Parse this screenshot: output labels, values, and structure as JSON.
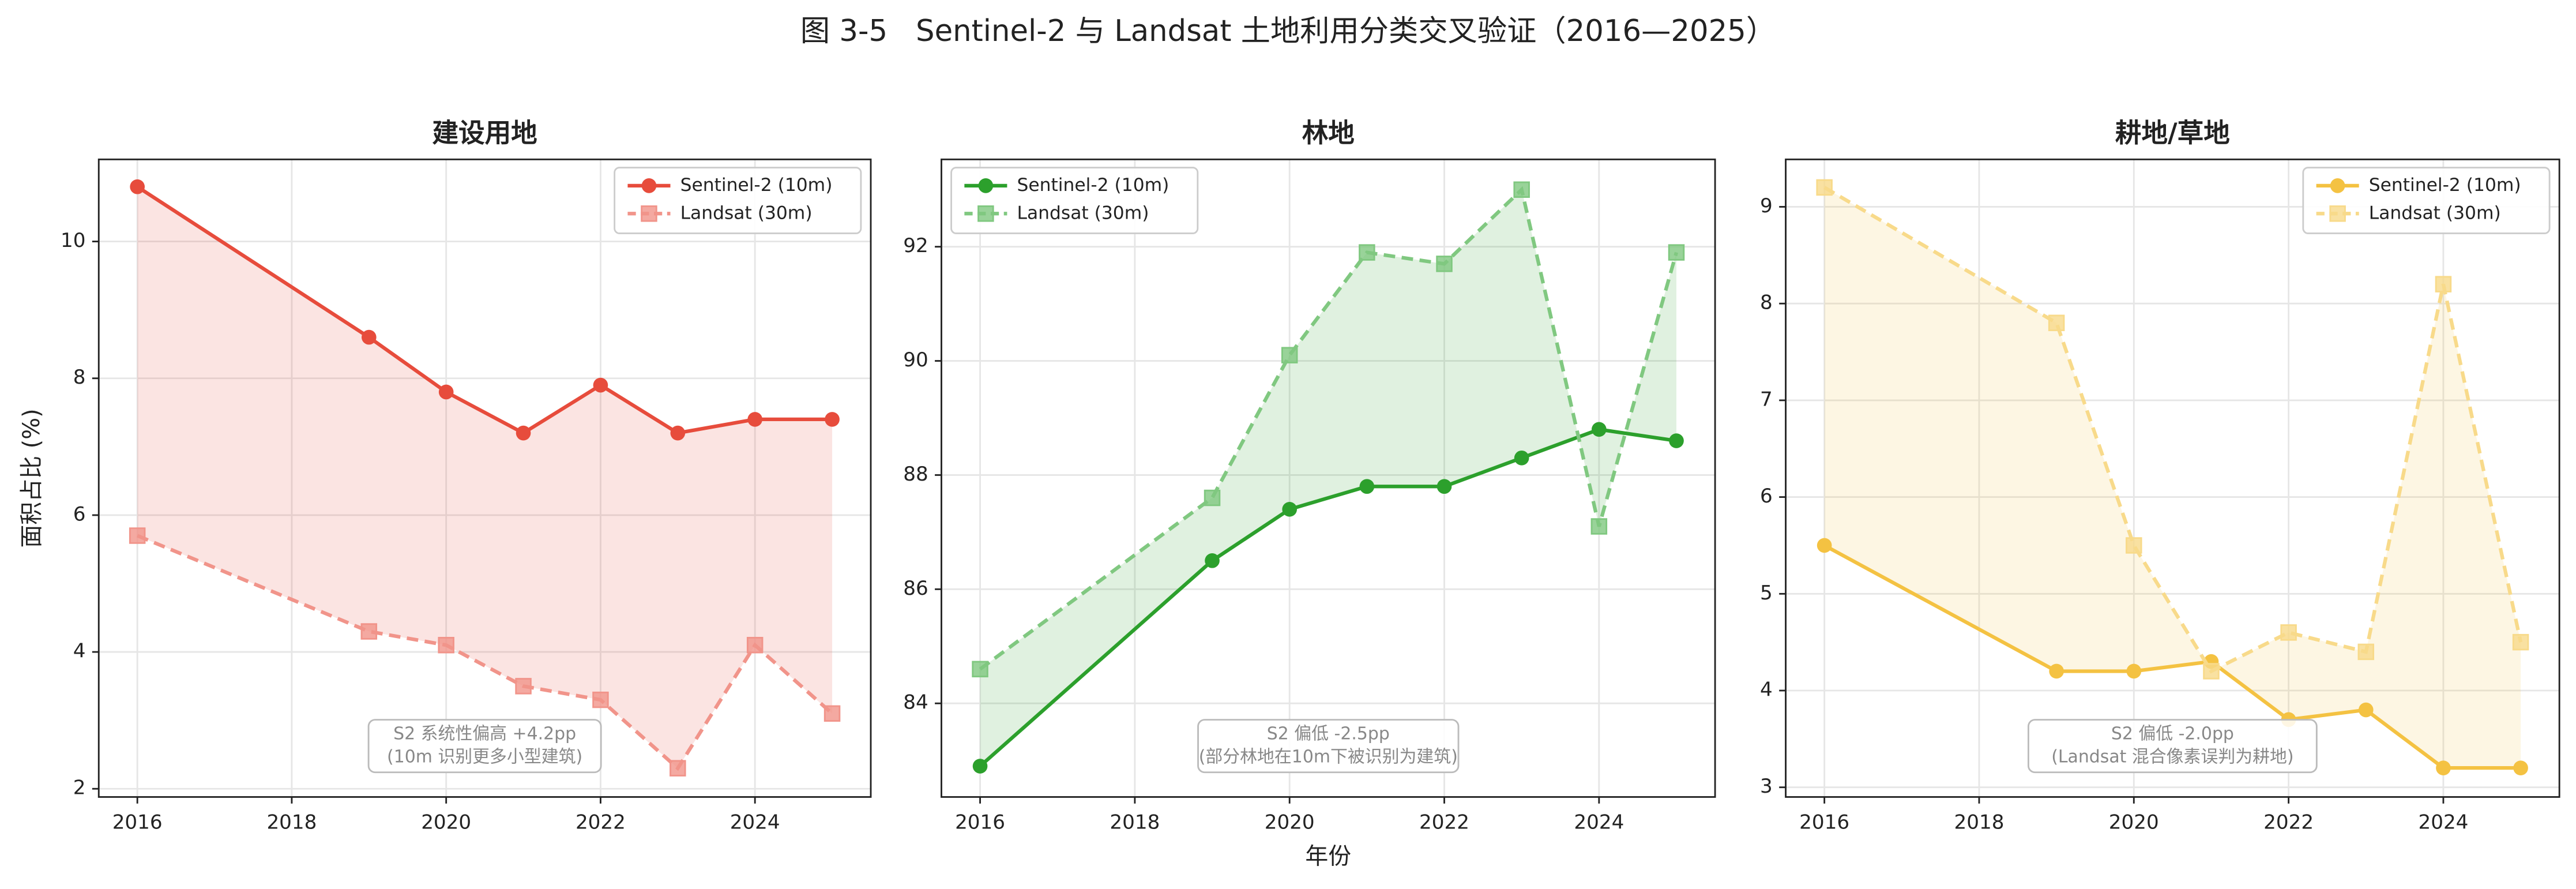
{
  "title": "图 3-5   Sentinel-2 与 Landsat 土地利用分类交叉验证（2016—2025）",
  "chart_data": [
    {
      "type": "line",
      "title": "建设用地",
      "ylabel": "面积占比 (%)",
      "x": [
        2016,
        2019,
        2020,
        2021,
        2022,
        2023,
        2024,
        2025
      ],
      "series": [
        {
          "name": "Sentinel-2 (10m)",
          "color": "#e74c3c",
          "marker": "circle",
          "linestyle": "solid",
          "values": [
            10.8,
            8.6,
            7.8,
            7.2,
            7.9,
            7.2,
            7.4,
            7.4
          ]
        },
        {
          "name": "Landsat (30m)",
          "color": "#f1948a",
          "marker": "square",
          "linestyle": "dashed",
          "values": [
            5.7,
            4.3,
            4.1,
            3.5,
            3.3,
            2.3,
            4.1,
            3.1
          ]
        }
      ],
      "fill_color": "#e74c3c",
      "xlim": [
        2015.5,
        2025.5
      ],
      "xticks": [
        2016,
        2018,
        2020,
        2022,
        2024
      ],
      "ylim": [
        1.88,
        11.2
      ],
      "yticks": [
        2,
        4,
        6,
        8,
        10
      ],
      "grid": true,
      "legend": "upper right",
      "annotation": [
        "S2 系统性偏高 +4.2pp",
        "(10m 识别更多小型建筑)"
      ]
    },
    {
      "type": "line",
      "title": "林地",
      "xlabel": "年份",
      "x": [
        2016,
        2019,
        2020,
        2021,
        2022,
        2023,
        2024,
        2025
      ],
      "series": [
        {
          "name": "Sentinel-2 (10m)",
          "color": "#2ca02c",
          "marker": "circle",
          "linestyle": "solid",
          "values": [
            82.9,
            86.5,
            87.4,
            87.8,
            87.8,
            88.3,
            88.8,
            88.6
          ]
        },
        {
          "name": "Landsat (30m)",
          "color": "#80c880",
          "marker": "square",
          "linestyle": "dashed",
          "values": [
            84.6,
            87.6,
            90.1,
            91.9,
            91.7,
            93.0,
            87.1,
            91.9
          ]
        }
      ],
      "fill_color": "#2ca02c",
      "xlim": [
        2015.5,
        2025.5
      ],
      "xticks": [
        2016,
        2018,
        2020,
        2022,
        2024
      ],
      "ylim": [
        82.36,
        93.53
      ],
      "yticks": [
        84,
        86,
        88,
        90,
        92
      ],
      "grid": true,
      "legend": "upper left",
      "annotation": [
        "S2 偏低 -2.5pp",
        "(部分林地在10m下被识别为建筑)"
      ]
    },
    {
      "type": "line",
      "title": "耕地/草地",
      "x": [
        2016,
        2019,
        2020,
        2021,
        2022,
        2023,
        2024,
        2025
      ],
      "series": [
        {
          "name": "Sentinel-2 (10m)",
          "color": "#f4c242",
          "marker": "circle",
          "linestyle": "solid",
          "values": [
            5.5,
            4.2,
            4.2,
            4.3,
            3.7,
            3.8,
            3.2,
            3.2
          ]
        },
        {
          "name": "Landsat (30m)",
          "color": "#f8da8a",
          "marker": "square",
          "linestyle": "dashed",
          "values": [
            9.2,
            7.8,
            5.5,
            4.2,
            4.6,
            4.4,
            8.2,
            4.5
          ]
        }
      ],
      "fill_color": "#f4c242",
      "xlim": [
        2015.5,
        2025.5
      ],
      "xticks": [
        2016,
        2018,
        2020,
        2022,
        2024
      ],
      "ylim": [
        2.9,
        9.49
      ],
      "yticks": [
        3,
        4,
        5,
        6,
        7,
        8,
        9
      ],
      "grid": true,
      "legend": "upper right",
      "annotation": [
        "S2 偏低 -2.0pp",
        "(Landsat 混合像素误判为耕地)"
      ]
    }
  ]
}
